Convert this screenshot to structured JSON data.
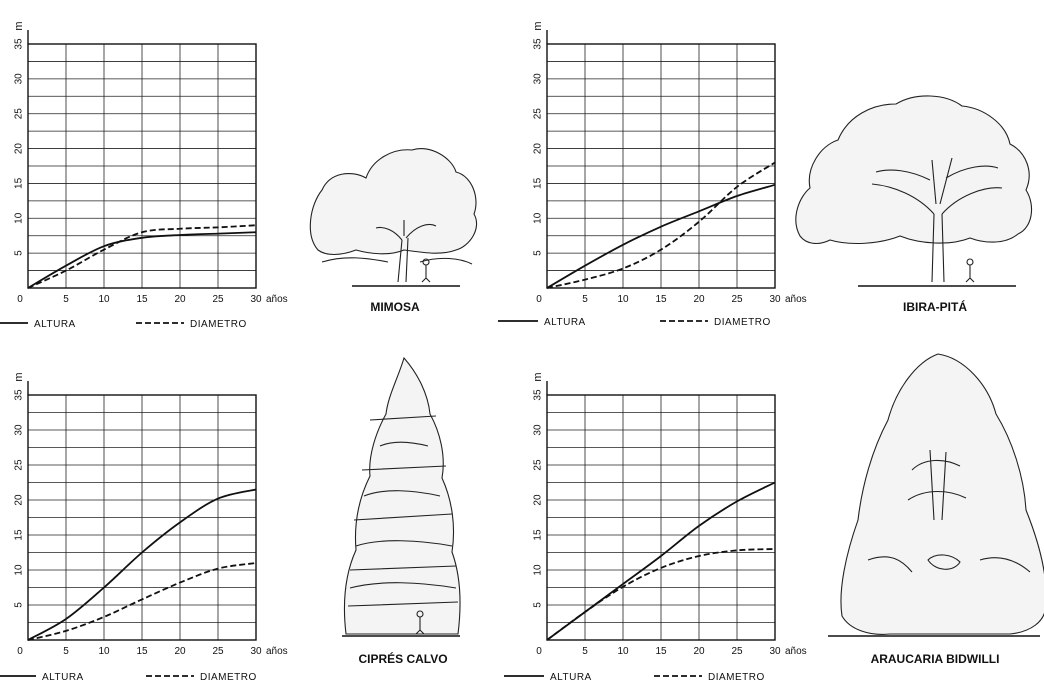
{
  "chart_data": [
    {
      "type": "line",
      "title": "MIMOSA",
      "ylabel": "m",
      "xlabel": "años",
      "xlim": [
        0,
        30
      ],
      "ylim": [
        0,
        35
      ],
      "xticks": [
        "0",
        "5",
        "10",
        "15",
        "20",
        "25",
        "30"
      ],
      "yticks": [
        "5",
        "10",
        "15",
        "20",
        "25",
        "30",
        "35"
      ],
      "grid": true,
      "series": [
        {
          "name": "ALTURA",
          "style": "solid",
          "x": [
            0,
            5,
            10,
            15,
            20,
            25,
            30
          ],
          "y": [
            0,
            3.2,
            6,
            7.2,
            7.6,
            7.8,
            8
          ]
        },
        {
          "name": "DIAMETRO",
          "style": "dashed",
          "x": [
            0,
            5,
            10,
            15,
            20,
            25,
            30
          ],
          "y": [
            0,
            2.5,
            5.5,
            8,
            8.5,
            8.7,
            9
          ]
        }
      ]
    },
    {
      "type": "line",
      "title": "IBIRA-PITÁ",
      "ylabel": "m",
      "xlabel": "años",
      "xlim": [
        0,
        30
      ],
      "ylim": [
        0,
        35
      ],
      "xticks": [
        "0",
        "5",
        "10",
        "15",
        "20",
        "25",
        "30"
      ],
      "yticks": [
        "5",
        "10",
        "15",
        "20",
        "25",
        "30",
        "35"
      ],
      "grid": true,
      "series": [
        {
          "name": "ALTURA",
          "style": "solid",
          "x": [
            0,
            5,
            10,
            15,
            20,
            25,
            30
          ],
          "y": [
            0,
            3.2,
            6.2,
            8.8,
            11,
            13.2,
            14.8
          ]
        },
        {
          "name": "DIAMETRO",
          "style": "dashed",
          "x": [
            0,
            5,
            10,
            15,
            20,
            25,
            30
          ],
          "y": [
            0,
            1.2,
            2.8,
            5.5,
            9.5,
            14.5,
            18
          ]
        }
      ]
    },
    {
      "type": "line",
      "title": "CIPRÉS CALVO",
      "ylabel": "m",
      "xlabel": "años",
      "xlim": [
        0,
        30
      ],
      "ylim": [
        0,
        35
      ],
      "xticks": [
        "0",
        "5",
        "10",
        "15",
        "20",
        "25",
        "30"
      ],
      "yticks": [
        "5",
        "10",
        "15",
        "20",
        "25",
        "30",
        "35"
      ],
      "grid": true,
      "series": [
        {
          "name": "ALTURA",
          "style": "solid",
          "x": [
            0,
            5,
            10,
            15,
            20,
            25,
            30
          ],
          "y": [
            0,
            3,
            7.5,
            12.5,
            16.8,
            20.2,
            21.5
          ]
        },
        {
          "name": "DIAMETRO",
          "style": "dashed",
          "x": [
            0,
            5,
            10,
            15,
            20,
            25,
            30
          ],
          "y": [
            0,
            1.3,
            3.3,
            5.8,
            8.2,
            10.2,
            11
          ]
        }
      ]
    },
    {
      "type": "line",
      "title": "ARAUCARIA BIDWILLI",
      "ylabel": "m",
      "xlabel": "años",
      "xlim": [
        0,
        30
      ],
      "ylim": [
        0,
        35
      ],
      "xticks": [
        "0",
        "5",
        "10",
        "15",
        "20",
        "25",
        "30"
      ],
      "yticks": [
        "5",
        "10",
        "15",
        "20",
        "25",
        "30",
        "35"
      ],
      "grid": true,
      "series": [
        {
          "name": "ALTURA",
          "style": "solid",
          "x": [
            0,
            5,
            10,
            15,
            20,
            25,
            30
          ],
          "y": [
            0,
            4,
            8,
            12,
            16.3,
            19.8,
            22.5
          ]
        },
        {
          "name": "DIAMETRO",
          "style": "dashed",
          "x": [
            0,
            5,
            10,
            15,
            20,
            25,
            30
          ],
          "y": [
            0,
            4,
            7.6,
            10.3,
            12,
            12.8,
            13
          ]
        }
      ]
    }
  ],
  "legend": {
    "altura": "ALTURA",
    "diametro": "DIAMETRO"
  },
  "colors": {
    "ink": "#111111",
    "background": "#ffffff"
  },
  "icons": [
    "mimosa-tree-icon",
    "ibira-pita-tree-icon",
    "cipres-calvo-tree-icon",
    "araucaria-tree-icon"
  ]
}
